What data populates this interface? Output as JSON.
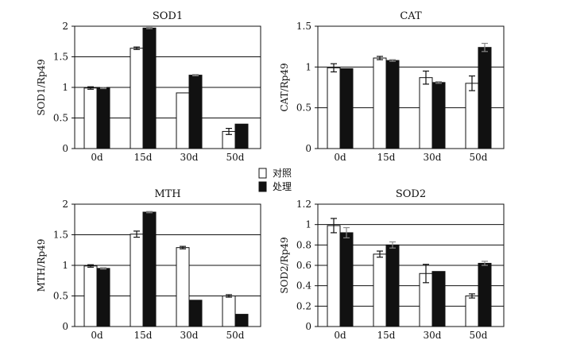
{
  "legend": {
    "control_label": "对照",
    "treatment_label": "处理",
    "control_color": "#ffffff",
    "treatment_color": "#111111"
  },
  "chart_data": [
    {
      "type": "bar",
      "title": "SOD1",
      "xlabel": "",
      "ylabel": "SOD1/Rp49",
      "ylim": [
        0,
        2
      ],
      "yticks": [
        0,
        0.5,
        1,
        1.5,
        2
      ],
      "ytick_labels": [
        "0",
        "0.5",
        "1",
        "1.5",
        "2"
      ],
      "grid": true,
      "categories": [
        "0d",
        "15d",
        "30d",
        "50d"
      ],
      "series": [
        {
          "name": "对照",
          "values": [
            0.99,
            1.64,
            0.91,
            0.28
          ],
          "errors": [
            0.02,
            0.02,
            0.0,
            0.05
          ]
        },
        {
          "name": "处理",
          "values": [
            0.99,
            1.97,
            1.2,
            0.4
          ],
          "errors": [
            0.01,
            0.01,
            0.01,
            0.0
          ]
        }
      ]
    },
    {
      "type": "bar",
      "title": "CAT",
      "xlabel": "",
      "ylabel": "CAT/Rp49",
      "ylim": [
        0,
        1.5
      ],
      "yticks": [
        0,
        0.5,
        1,
        1.5
      ],
      "ytick_labels": [
        "0",
        "0.5",
        "1",
        "1.5"
      ],
      "grid": true,
      "categories": [
        "0d",
        "15d",
        "30d",
        "50d"
      ],
      "series": [
        {
          "name": "对照",
          "values": [
            0.99,
            1.11,
            0.87,
            0.8
          ],
          "errors": [
            0.05,
            0.02,
            0.08,
            0.09
          ]
        },
        {
          "name": "处理",
          "values": [
            0.98,
            1.08,
            0.81,
            1.24
          ],
          "errors": [
            0.0,
            0.01,
            0.01,
            0.05
          ]
        }
      ]
    },
    {
      "type": "bar",
      "title": "MTH",
      "xlabel": "",
      "ylabel": "MTH/Rp49",
      "ylim": [
        0,
        2
      ],
      "yticks": [
        0,
        0.5,
        1,
        1.5,
        2
      ],
      "ytick_labels": [
        "0",
        "0.5",
        "1",
        "1.5",
        "2"
      ],
      "grid": true,
      "categories": [
        "0d",
        "15d",
        "30d",
        "50d"
      ],
      "series": [
        {
          "name": "对照",
          "values": [
            0.99,
            1.51,
            1.29,
            0.5
          ],
          "errors": [
            0.02,
            0.05,
            0.02,
            0.02
          ]
        },
        {
          "name": "处理",
          "values": [
            0.95,
            1.87,
            0.43,
            0.2
          ],
          "errors": [
            0.01,
            0.01,
            0.0,
            0.0
          ]
        }
      ]
    },
    {
      "type": "bar",
      "title": "SOD2",
      "xlabel": "",
      "ylabel": "SOD2/Rp49",
      "ylim": [
        0,
        1.2
      ],
      "yticks": [
        0,
        0.2,
        0.4,
        0.6,
        0.8,
        1,
        1.2
      ],
      "ytick_labels": [
        "0",
        "0.2",
        "0.4",
        "0.6",
        "0.8",
        "1",
        "1.2"
      ],
      "grid": true,
      "categories": [
        "0d",
        "15d",
        "30d",
        "50d"
      ],
      "series": [
        {
          "name": "对照",
          "values": [
            0.99,
            0.71,
            0.52,
            0.3
          ],
          "errors": [
            0.07,
            0.03,
            0.09,
            0.02
          ]
        },
        {
          "name": "处理",
          "values": [
            0.92,
            0.8,
            0.54,
            0.62
          ],
          "errors": [
            0.05,
            0.03,
            0.0,
            0.02
          ]
        }
      ]
    }
  ]
}
